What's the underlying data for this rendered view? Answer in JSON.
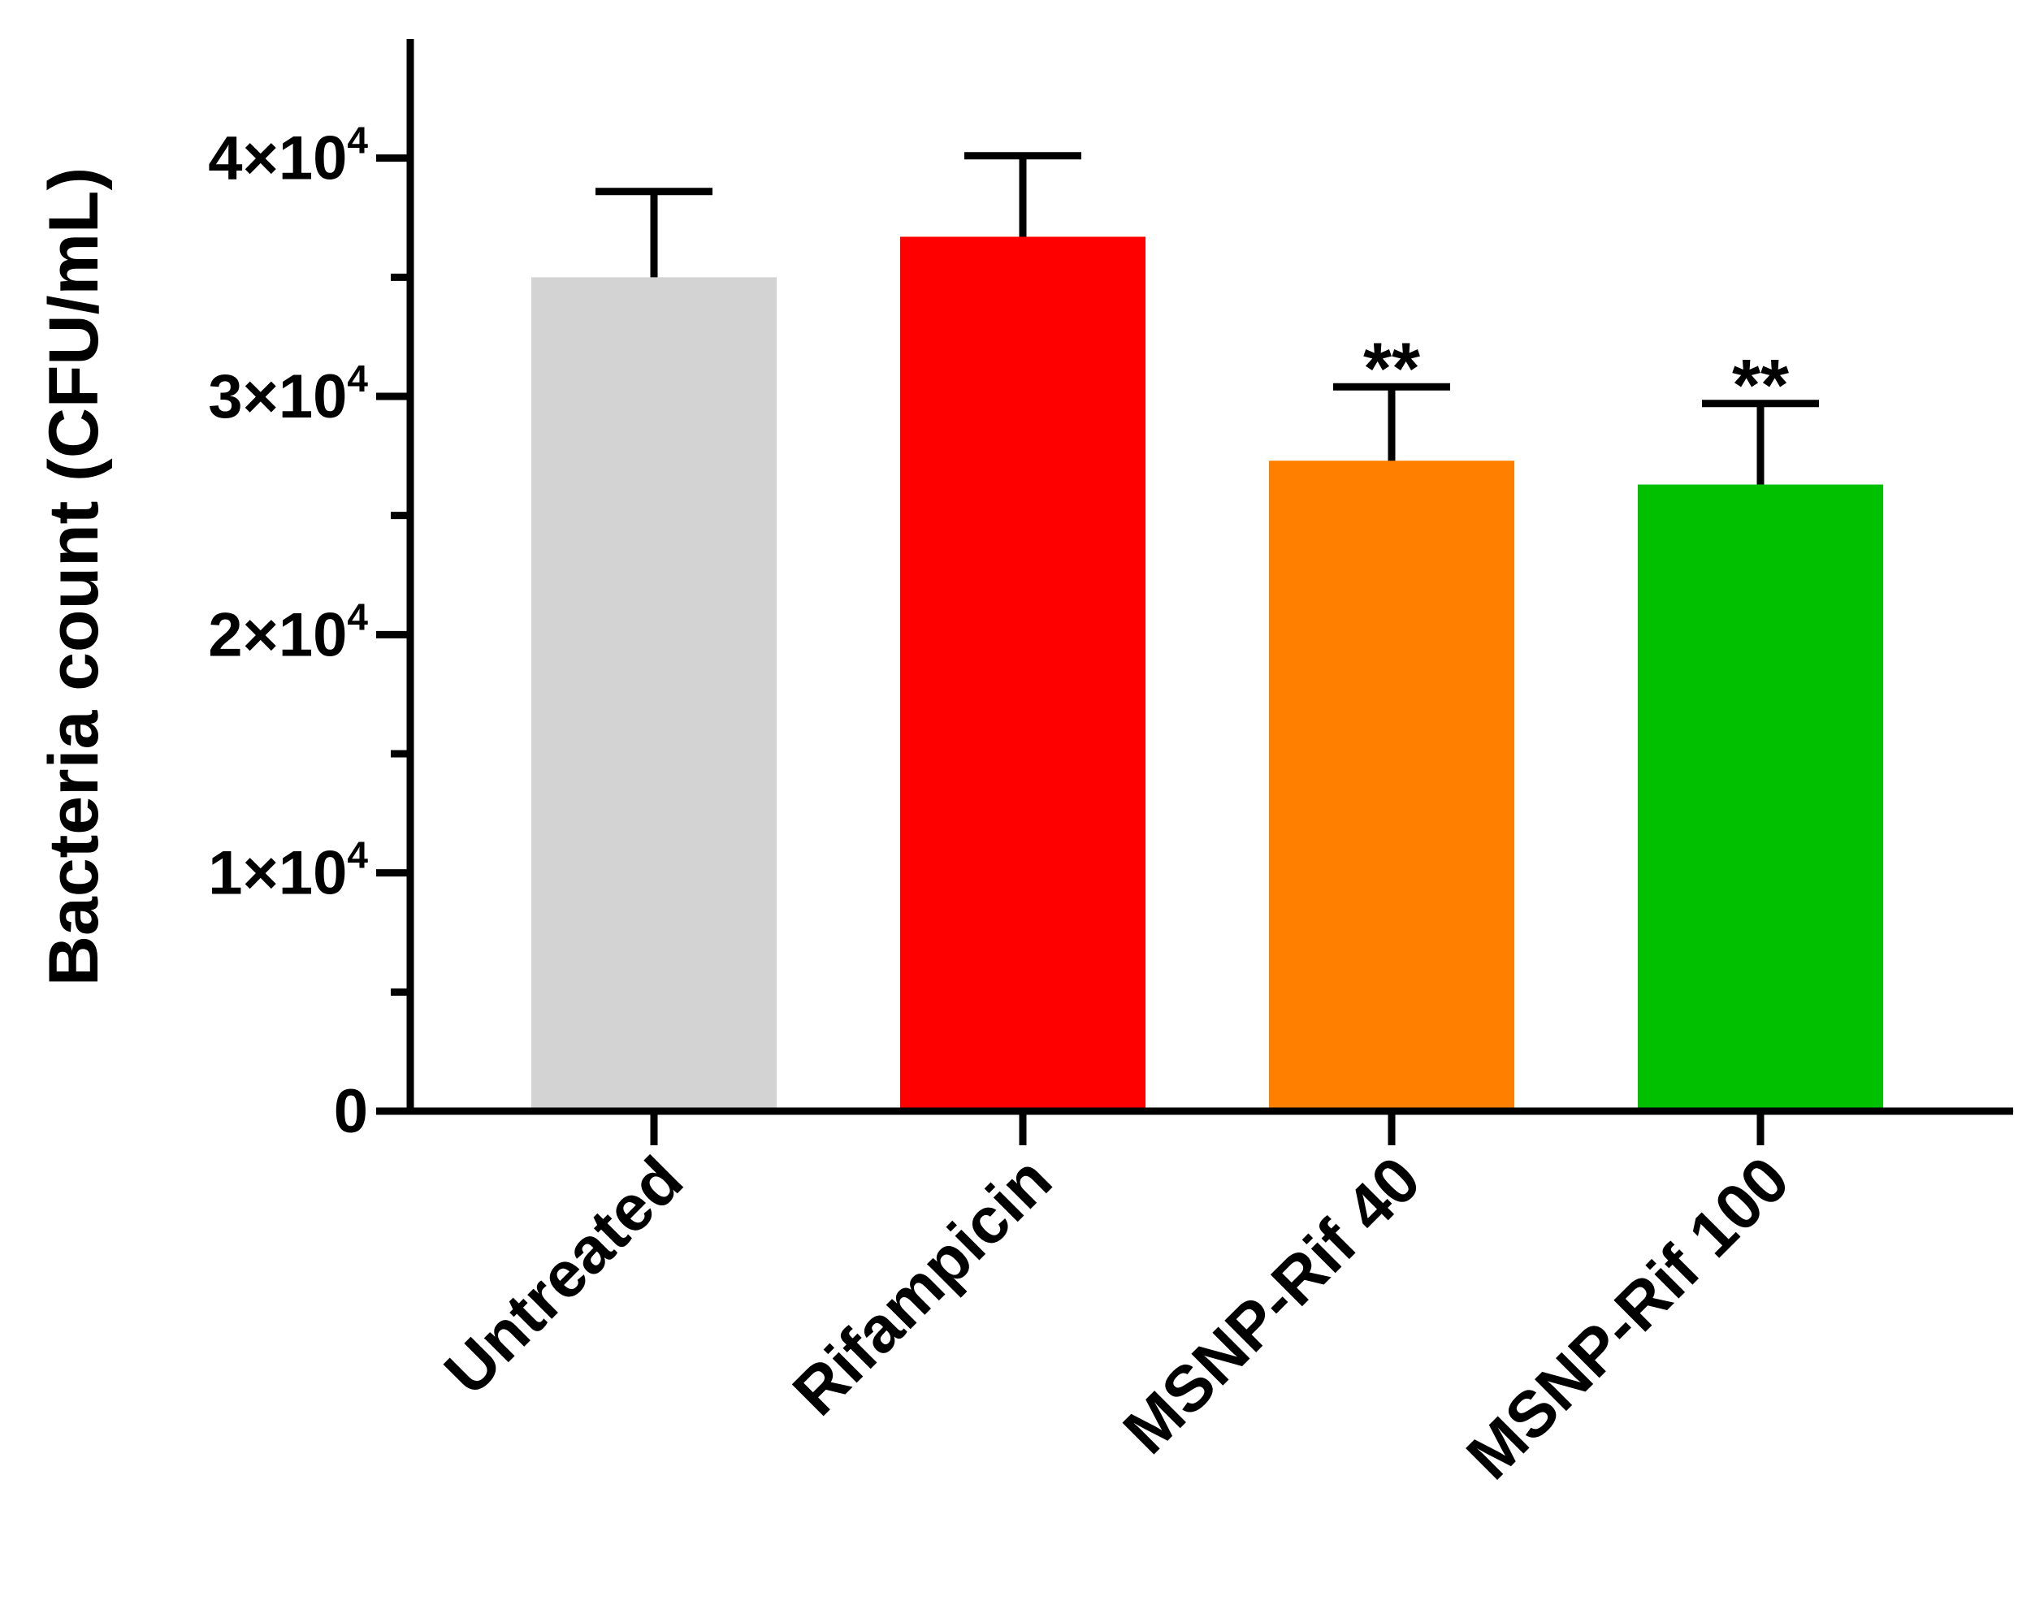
{
  "chart_data": {
    "type": "bar",
    "title": "",
    "xlabel": "",
    "ylabel": "Bacteria count (CFU/mL)",
    "ylim": [
      0,
      45000
    ],
    "categories": [
      "Untreated",
      "Rifampicin",
      "MSNP-Rif 40",
      "MSNP-Rif 100"
    ],
    "values": [
      35000,
      36700,
      27300,
      26300
    ],
    "error_upper": [
      38600,
      40100,
      30400,
      29700
    ],
    "annotations": [
      "",
      "",
      "**",
      "**"
    ],
    "colors": [
      "#d3d3d3",
      "#ff0000",
      "#ff8000",
      "#00c000"
    ],
    "yticks": [
      {
        "value": 0,
        "mantissa": "0",
        "exponent": ""
      },
      {
        "value": 10000,
        "mantissa": "1×10",
        "exponent": "4"
      },
      {
        "value": 20000,
        "mantissa": "2×10",
        "exponent": "4"
      },
      {
        "value": 30000,
        "mantissa": "3×10",
        "exponent": "4"
      },
      {
        "value": 40000,
        "mantissa": "4×10",
        "exponent": "4"
      }
    ],
    "minor_ticks": [
      5000,
      15000,
      25000,
      35000
    ],
    "grid": false,
    "legend": "none"
  }
}
